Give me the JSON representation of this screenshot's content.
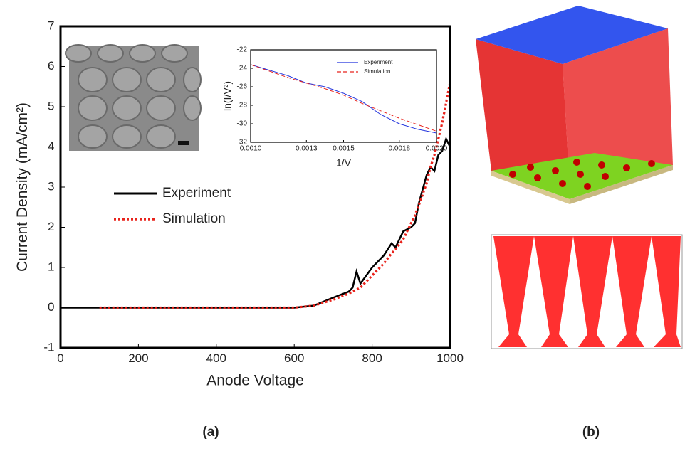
{
  "chart_data": [
    {
      "type": "line",
      "xlabel": "Anode Voltage",
      "ylabel": "Current Density (mA/cm²)",
      "x": [
        0,
        100,
        200,
        300,
        400,
        500,
        600,
        650,
        700,
        740,
        750,
        760,
        770,
        800,
        830,
        850,
        860,
        880,
        900,
        910,
        920,
        940,
        950,
        960,
        970,
        980,
        990,
        1000
      ],
      "series": [
        {
          "name": "Experiment",
          "color": "#000000",
          "style": "solid",
          "values": [
            0,
            0,
            0,
            0,
            0,
            0,
            0,
            0.05,
            0.25,
            0.4,
            0.5,
            0.9,
            0.6,
            1.0,
            1.3,
            1.6,
            1.5,
            1.9,
            2.0,
            2.1,
            2.6,
            3.3,
            3.5,
            3.4,
            3.8,
            3.9,
            4.2,
            4.0
          ]
        },
        {
          "name": "Simulation",
          "color": "#e8231c",
          "style": "dotted",
          "values": [
            null,
            0,
            0,
            0,
            0,
            0,
            0,
            0.05,
            0.2,
            0.35,
            0.4,
            0.45,
            0.5,
            0.8,
            1.1,
            1.35,
            1.45,
            1.7,
            2.1,
            2.3,
            2.55,
            3.1,
            3.5,
            3.8,
            4.2,
            4.6,
            5.1,
            5.6
          ]
        }
      ],
      "xlim": [
        0,
        1000
      ],
      "xticks": [
        0,
        200,
        400,
        600,
        800,
        1000
      ],
      "ylim": [
        -1,
        7
      ],
      "yticks": [
        -1,
        0,
        1,
        2,
        3,
        4,
        5,
        6,
        7
      ],
      "legend": "center left"
    },
    {
      "type": "line",
      "xlabel": "1/V",
      "ylabel": "ln(I/V²)",
      "x": [
        0.001,
        0.0011,
        0.0012,
        0.0013,
        0.0014,
        0.0015,
        0.0016,
        0.0017,
        0.0018,
        0.0019,
        0.002
      ],
      "series": [
        {
          "name": "Experiment",
          "color": "#2233dd",
          "style": "solid",
          "values": [
            -23.6,
            -24.2,
            -24.8,
            -25.6,
            -26.0,
            -26.7,
            -27.6,
            -29.0,
            -30.0,
            -30.6,
            -31.0
          ]
        },
        {
          "name": "Simulation",
          "color": "#e8231c",
          "style": "dashed",
          "values": [
            -23.6,
            -24.3,
            -25.0,
            -25.6,
            -26.2,
            -26.9,
            -27.8,
            -28.6,
            -29.4,
            -30.1,
            -30.8
          ]
        }
      ],
      "xlim": [
        0.001,
        0.002
      ],
      "xticks": [
        {
          "value": 0.001,
          "label": "0.0010"
        },
        {
          "value": 0.0013,
          "label": "0.0013"
        },
        {
          "value": 0.0015,
          "label": "0.0015"
        },
        {
          "value": 0.0018,
          "label": "0.0018"
        },
        {
          "value": 0.002,
          "label": "0.0020"
        }
      ],
      "ylim": [
        -32,
        -22
      ],
      "yticks": [
        -32,
        -30,
        -28,
        -26,
        -24,
        -22
      ],
      "legend": "upper right"
    }
  ],
  "panels": {
    "a": "(a)",
    "b": "(b)"
  }
}
